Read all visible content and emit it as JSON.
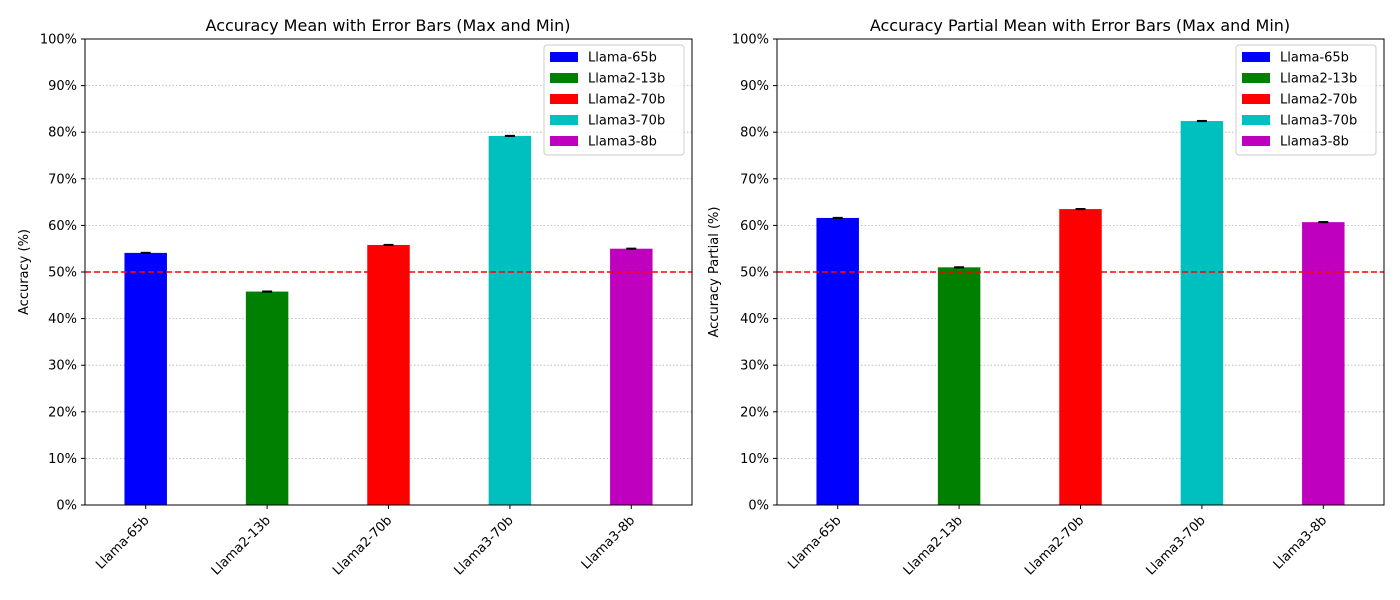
{
  "chart_data": [
    {
      "type": "bar",
      "title": "Accuracy Mean with Error Bars (Max and Min)",
      "xlabel": "",
      "ylabel": "Accuracy (%)",
      "ylim": [
        0,
        100
      ],
      "yticks": [
        "0%",
        "10%",
        "20%",
        "30%",
        "40%",
        "50%",
        "60%",
        "70%",
        "80%",
        "90%",
        "100%"
      ],
      "categories": [
        "Llama-65b",
        "Llama2-13b",
        "Llama2-70b",
        "Llama3-70b",
        "Llama3-8b"
      ],
      "values": [
        54.1,
        45.8,
        55.8,
        79.2,
        55.0
      ],
      "error_min": [
        54.0,
        45.7,
        55.7,
        79.1,
        54.9
      ],
      "error_max": [
        54.2,
        45.9,
        55.9,
        79.3,
        55.1
      ],
      "colors": [
        "#0000ff",
        "#008000",
        "#ff0000",
        "#00bfbf",
        "#bf00bf"
      ],
      "reference_line": {
        "value": 50,
        "color": "#ff0000",
        "style": "dashed"
      },
      "grid": "y-dotted",
      "legend": {
        "position": "top-right",
        "entries": [
          "Llama-65b",
          "Llama2-13b",
          "Llama2-70b",
          "Llama3-70b",
          "Llama3-8b"
        ]
      }
    },
    {
      "type": "bar",
      "title": "Accuracy Partial Mean with Error Bars (Max and Min)",
      "xlabel": "",
      "ylabel": "Accuracy Partial (%)",
      "ylim": [
        0,
        100
      ],
      "yticks": [
        "0%",
        "10%",
        "20%",
        "30%",
        "40%",
        "50%",
        "60%",
        "70%",
        "80%",
        "90%",
        "100%"
      ],
      "categories": [
        "Llama-65b",
        "Llama2-13b",
        "Llama2-70b",
        "Llama3-70b",
        "Llama3-8b"
      ],
      "values": [
        61.6,
        51.0,
        63.5,
        82.4,
        60.7
      ],
      "error_min": [
        61.5,
        50.9,
        63.4,
        82.3,
        60.6
      ],
      "error_max": [
        61.7,
        51.1,
        63.6,
        82.5,
        60.8
      ],
      "colors": [
        "#0000ff",
        "#008000",
        "#ff0000",
        "#00bfbf",
        "#bf00bf"
      ],
      "reference_line": {
        "value": 50,
        "color": "#ff0000",
        "style": "dashed"
      },
      "grid": "y-dotted",
      "legend": {
        "position": "top-right",
        "entries": [
          "Llama-65b",
          "Llama2-13b",
          "Llama2-70b",
          "Llama3-70b",
          "Llama3-8b"
        ]
      }
    }
  ]
}
